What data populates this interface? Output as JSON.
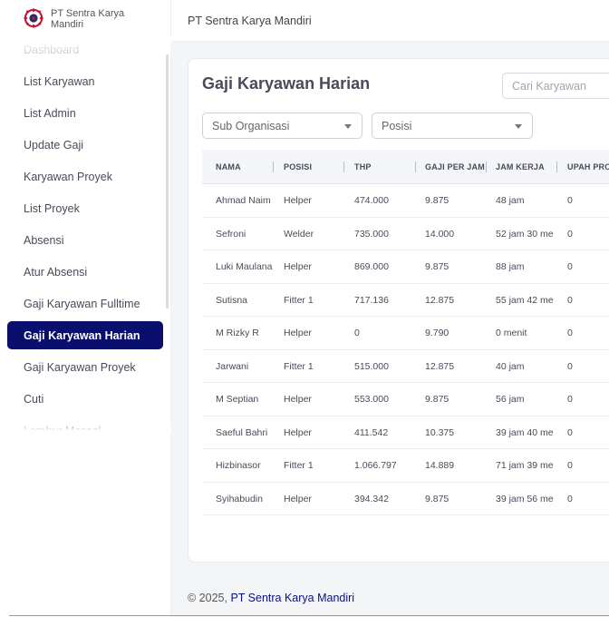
{
  "brand": {
    "name": "PT Sentra Karya Mandiri"
  },
  "header": {
    "title": "PT Sentra Karya Mandiri"
  },
  "sidebar": {
    "items": [
      {
        "label": "Dashboard",
        "active": false
      },
      {
        "label": "List Karyawan",
        "active": false
      },
      {
        "label": "List Admin",
        "active": false
      },
      {
        "label": "Update Gaji",
        "active": false
      },
      {
        "label": "Karyawan Proyek",
        "active": false
      },
      {
        "label": "List Proyek",
        "active": false
      },
      {
        "label": "Absensi",
        "active": false
      },
      {
        "label": "Atur Absensi",
        "active": false
      },
      {
        "label": "Gaji Karyawan Fulltime",
        "active": false
      },
      {
        "label": "Gaji Karyawan Harian",
        "active": true
      },
      {
        "label": "Gaji Karyawan Proyek",
        "active": false
      },
      {
        "label": "Cuti",
        "active": false
      },
      {
        "label": "Lembur Massal",
        "active": false
      }
    ]
  },
  "main": {
    "title": "Gaji Karyawan Harian",
    "search": {
      "placeholder": "Cari Karyawan",
      "value": ""
    },
    "filters": {
      "sub_organisasi": "Sub Organisasi",
      "posisi": "Posisi"
    },
    "table": {
      "columns": [
        "NAMA",
        "POSISI",
        "THP",
        "GAJI PER JAM",
        "JAM KERJA",
        "UPAH PROJ"
      ],
      "rows": [
        [
          "Ahmad Naim",
          "Helper",
          "474.000",
          "9.875",
          "48 jam",
          "0"
        ],
        [
          "Sefroni",
          "Welder",
          "735.000",
          "14.000",
          "52 jam 30 me",
          "0"
        ],
        [
          "Luki Maulana",
          "Helper",
          "869.000",
          "9.875",
          "88 jam",
          "0"
        ],
        [
          "Sutisna",
          "Fitter 1",
          "717.136",
          "12.875",
          "55 jam 42 me",
          "0"
        ],
        [
          "M Rizky R",
          "Helper",
          "0",
          "9.790",
          "0 menit",
          "0"
        ],
        [
          "Jarwani",
          "Fitter 1",
          "515.000",
          "12.875",
          "40 jam",
          "0"
        ],
        [
          "M Septian",
          "Helper",
          "553.000",
          "9.875",
          "56 jam",
          "0"
        ],
        [
          "Saeful Bahri",
          "Helper",
          "411.542",
          "10.375",
          "39 jam 40 me",
          "0"
        ],
        [
          "Hizbinasor",
          "Fitter 1",
          "1.066.797",
          "14.889",
          "71 jam 39 me",
          "0"
        ],
        [
          "Syihabudin",
          "Helper",
          "394.342",
          "9.875",
          "39 jam 56 me",
          "0"
        ]
      ]
    }
  },
  "footer": {
    "copyright": "© 2025, ",
    "company": "PT Sentra Karya Mandiri"
  },
  "colors": {
    "accent": "#0a0f6e",
    "logo_red": "#c8102e"
  }
}
